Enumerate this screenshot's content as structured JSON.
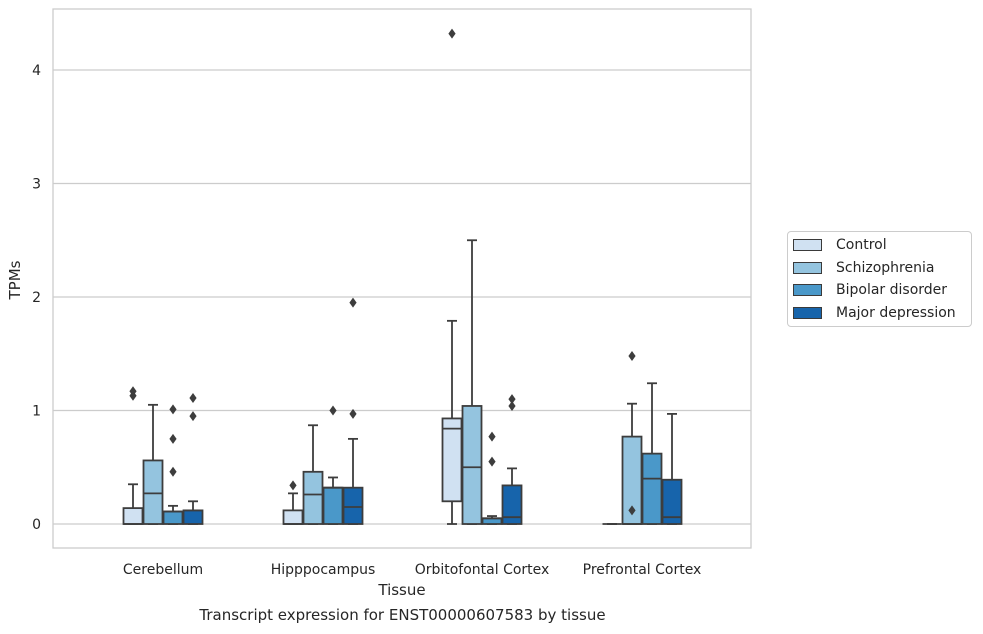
{
  "chart_data": {
    "type": "box",
    "xlabel": "Tissue",
    "ylabel": "TPMs",
    "caption": "Transcript expression for ENST00000607583 by tissue",
    "ylim": [
      -0.2,
      4.55
    ],
    "yticks": [
      "0",
      "1",
      "2",
      "3",
      "4"
    ],
    "grid": "horizontal",
    "legend_position": "right",
    "categories": [
      "Cerebellum",
      "Hipppocampus",
      "Orbitofontal Cortex",
      "Prefrontal Cortex"
    ],
    "series": [
      {
        "name": "Control",
        "color": "#d0e1f2",
        "boxes": [
          {
            "q1": 0,
            "median": 0,
            "q3": 0.14,
            "whisker_low": 0,
            "whisker_high": 0.35,
            "outliers": [
              1.13,
              1.17
            ]
          },
          {
            "q1": 0,
            "median": 0,
            "q3": 0.12,
            "whisker_low": 0,
            "whisker_high": 0.27,
            "outliers": [
              0.34
            ]
          },
          {
            "q1": 0.2,
            "median": 0.84,
            "q3": 0.93,
            "whisker_low": 0,
            "whisker_high": 1.79,
            "outliers": [
              4.32
            ]
          },
          {
            "q1": 0,
            "median": 0,
            "q3": 0,
            "whisker_low": 0,
            "whisker_high": 0,
            "outliers": []
          }
        ]
      },
      {
        "name": "Schizophrenia",
        "color": "#94c4df",
        "boxes": [
          {
            "q1": 0,
            "median": 0.27,
            "q3": 0.56,
            "whisker_low": 0,
            "whisker_high": 1.05,
            "outliers": []
          },
          {
            "q1": 0,
            "median": 0.26,
            "q3": 0.46,
            "whisker_low": 0,
            "whisker_high": 0.87,
            "outliers": []
          },
          {
            "q1": 0,
            "median": 0.5,
            "q3": 1.04,
            "whisker_low": 0,
            "whisker_high": 2.5,
            "outliers": []
          },
          {
            "q1": 0,
            "median": 0,
            "q3": 0.77,
            "whisker_low": 0,
            "whisker_high": 1.06,
            "outliers": [
              0.12,
              1.48
            ]
          }
        ]
      },
      {
        "name": "Bipolar disorder",
        "color": "#4a98c9",
        "boxes": [
          {
            "q1": 0,
            "median": 0.11,
            "q3": 0.11,
            "whisker_low": 0,
            "whisker_high": 0.16,
            "outliers": [
              0.46,
              0.75,
              1.01
            ]
          },
          {
            "q1": 0,
            "median": 0.32,
            "q3": 0.32,
            "whisker_low": 0,
            "whisker_high": 0.41,
            "outliers": [
              1.0
            ]
          },
          {
            "q1": 0,
            "median": 0.05,
            "q3": 0.05,
            "whisker_low": 0,
            "whisker_high": 0.07,
            "outliers": [
              0.55,
              0.77
            ]
          },
          {
            "q1": 0,
            "median": 0.4,
            "q3": 0.62,
            "whisker_low": 0,
            "whisker_high": 1.24,
            "outliers": []
          }
        ]
      },
      {
        "name": "Major depression",
        "color": "#1764ab",
        "boxes": [
          {
            "q1": 0,
            "median": 0.12,
            "q3": 0.12,
            "whisker_low": 0,
            "whisker_high": 0.2,
            "outliers": [
              0.95,
              1.11
            ]
          },
          {
            "q1": 0,
            "median": 0.15,
            "q3": 0.32,
            "whisker_low": 0,
            "whisker_high": 0.75,
            "outliers": [
              0.97,
              1.95
            ]
          },
          {
            "q1": 0,
            "median": 0.06,
            "q3": 0.34,
            "whisker_low": 0,
            "whisker_high": 0.49,
            "outliers": [
              1.04,
              1.1
            ]
          },
          {
            "q1": 0,
            "median": 0.06,
            "q3": 0.39,
            "whisker_low": 0,
            "whisker_high": 0.97,
            "outliers": []
          }
        ]
      }
    ]
  },
  "colors": {
    "grid": "#cccccc",
    "frame": "#cccccc",
    "line": "#3d3d3d"
  }
}
